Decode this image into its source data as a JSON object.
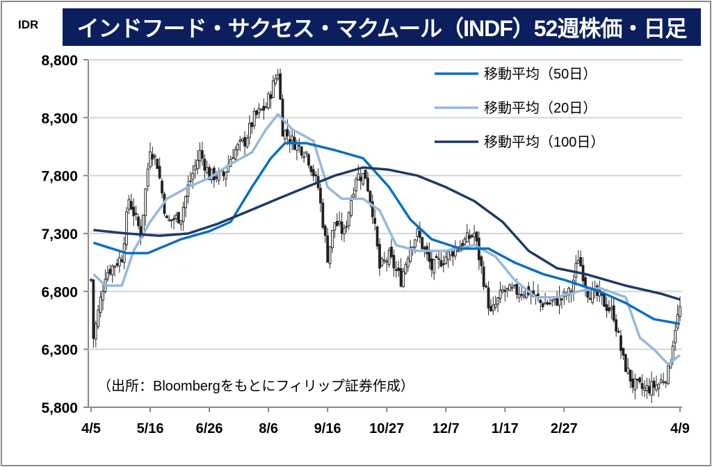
{
  "unit_label": "IDR",
  "title": "インドフード・サクセス・マクムール（INDF）52週株価・日足",
  "source_note": "（出所：Bloombergをもとにフィリップ証券作成）",
  "chart_data": {
    "type": "candlestick",
    "title": "インドフード・サクセス・マクムール（INDF）52週株価・日足",
    "ylabel": "IDR",
    "ylim": [
      5800,
      8800
    ],
    "yticks": [
      5800,
      6300,
      6800,
      7300,
      7800,
      8300,
      8800
    ],
    "ytick_labels": [
      "5,800",
      "6,300",
      "6,800",
      "7,300",
      "7,800",
      "8,300",
      "8,800"
    ],
    "xlim": [
      0,
      249
    ],
    "xticks": [
      0,
      25,
      50,
      75,
      100,
      125,
      150,
      175,
      200,
      249
    ],
    "xtick_labels": [
      "4/5",
      "5/16",
      "6/26",
      "8/6",
      "9/16",
      "10/27",
      "12/7",
      "1/17",
      "2/27",
      "4/9"
    ],
    "grid": true,
    "legend_position": "top-right",
    "close_keypoints": [
      [
        0,
        6900
      ],
      [
        1,
        6400
      ],
      [
        6,
        6950
      ],
      [
        13,
        7100
      ],
      [
        16,
        7600
      ],
      [
        21,
        7300
      ],
      [
        25,
        8050
      ],
      [
        28,
        7900
      ],
      [
        32,
        7400
      ],
      [
        38,
        7450
      ],
      [
        41,
        7700
      ],
      [
        46,
        8000
      ],
      [
        50,
        7800
      ],
      [
        56,
        7800
      ],
      [
        60,
        8000
      ],
      [
        65,
        8100
      ],
      [
        69,
        8300
      ],
      [
        74,
        8400
      ],
      [
        79,
        8700
      ],
      [
        81,
        8200
      ],
      [
        85,
        8100
      ],
      [
        91,
        8000
      ],
      [
        96,
        7700
      ],
      [
        100,
        7100
      ],
      [
        103,
        7400
      ],
      [
        107,
        7300
      ],
      [
        112,
        7800
      ],
      [
        116,
        7800
      ],
      [
        119,
        7500
      ],
      [
        122,
        7000
      ],
      [
        126,
        7100
      ],
      [
        131,
        6900
      ],
      [
        135,
        7200
      ],
      [
        138,
        7300
      ],
      [
        144,
        7000
      ],
      [
        150,
        7100
      ],
      [
        156,
        7200
      ],
      [
        162,
        7300
      ],
      [
        165,
        7000
      ],
      [
        169,
        6600
      ],
      [
        174,
        6800
      ],
      [
        179,
        6800
      ],
      [
        185,
        6800
      ],
      [
        190,
        6700
      ],
      [
        194,
        6700
      ],
      [
        200,
        6750
      ],
      [
        203,
        6800
      ],
      [
        206,
        7100
      ],
      [
        210,
        6800
      ],
      [
        215,
        6750
      ],
      [
        221,
        6600
      ],
      [
        225,
        6200
      ],
      [
        229,
        6000
      ],
      [
        234,
        5950
      ],
      [
        240,
        6000
      ],
      [
        244,
        6100
      ],
      [
        247,
        6500
      ],
      [
        249,
        6650
      ]
    ],
    "series": [
      {
        "name": "移動平均（50日）",
        "color": "#0a6fc2",
        "points": [
          [
            1,
            7220
          ],
          [
            15,
            7130
          ],
          [
            24,
            7130
          ],
          [
            38,
            7250
          ],
          [
            50,
            7320
          ],
          [
            59,
            7400
          ],
          [
            68,
            7700
          ],
          [
            76,
            7950
          ],
          [
            82,
            8080
          ],
          [
            91,
            8080
          ],
          [
            103,
            8020
          ],
          [
            115,
            7950
          ],
          [
            126,
            7700
          ],
          [
            135,
            7420
          ],
          [
            144,
            7250
          ],
          [
            156,
            7170
          ],
          [
            168,
            7170
          ],
          [
            179,
            7050
          ],
          [
            191,
            6950
          ],
          [
            200,
            6900
          ],
          [
            215,
            6800
          ],
          [
            226,
            6700
          ],
          [
            238,
            6560
          ],
          [
            249,
            6520
          ]
        ]
      },
      {
        "name": "移動平均（20日）",
        "color": "#95b8dd",
        "points": [
          [
            1,
            6950
          ],
          [
            6,
            6850
          ],
          [
            13,
            6850
          ],
          [
            18,
            7150
          ],
          [
            25,
            7400
          ],
          [
            32,
            7600
          ],
          [
            41,
            7700
          ],
          [
            50,
            7780
          ],
          [
            59,
            7900
          ],
          [
            68,
            8000
          ],
          [
            74,
            8200
          ],
          [
            79,
            8330
          ],
          [
            85,
            8200
          ],
          [
            94,
            8100
          ],
          [
            100,
            7700
          ],
          [
            106,
            7600
          ],
          [
            115,
            7600
          ],
          [
            122,
            7500
          ],
          [
            129,
            7200
          ],
          [
            138,
            7150
          ],
          [
            150,
            7150
          ],
          [
            162,
            7200
          ],
          [
            171,
            7100
          ],
          [
            179,
            6900
          ],
          [
            188,
            6750
          ],
          [
            197,
            6750
          ],
          [
            206,
            6800
          ],
          [
            215,
            6830
          ],
          [
            226,
            6750
          ],
          [
            232,
            6400
          ],
          [
            238,
            6300
          ],
          [
            244,
            6170
          ],
          [
            249,
            6250
          ]
        ]
      },
      {
        "name": "移動平均（100日）",
        "color": "#1c3a66",
        "points": [
          [
            1,
            7330
          ],
          [
            15,
            7300
          ],
          [
            29,
            7280
          ],
          [
            41,
            7300
          ],
          [
            53,
            7380
          ],
          [
            65,
            7480
          ],
          [
            79,
            7600
          ],
          [
            91,
            7700
          ],
          [
            103,
            7800
          ],
          [
            115,
            7870
          ],
          [
            126,
            7850
          ],
          [
            138,
            7800
          ],
          [
            150,
            7700
          ],
          [
            162,
            7580
          ],
          [
            174,
            7400
          ],
          [
            185,
            7150
          ],
          [
            197,
            7000
          ],
          [
            209,
            6950
          ],
          [
            226,
            6850
          ],
          [
            241,
            6780
          ],
          [
            249,
            6730
          ]
        ]
      }
    ]
  }
}
